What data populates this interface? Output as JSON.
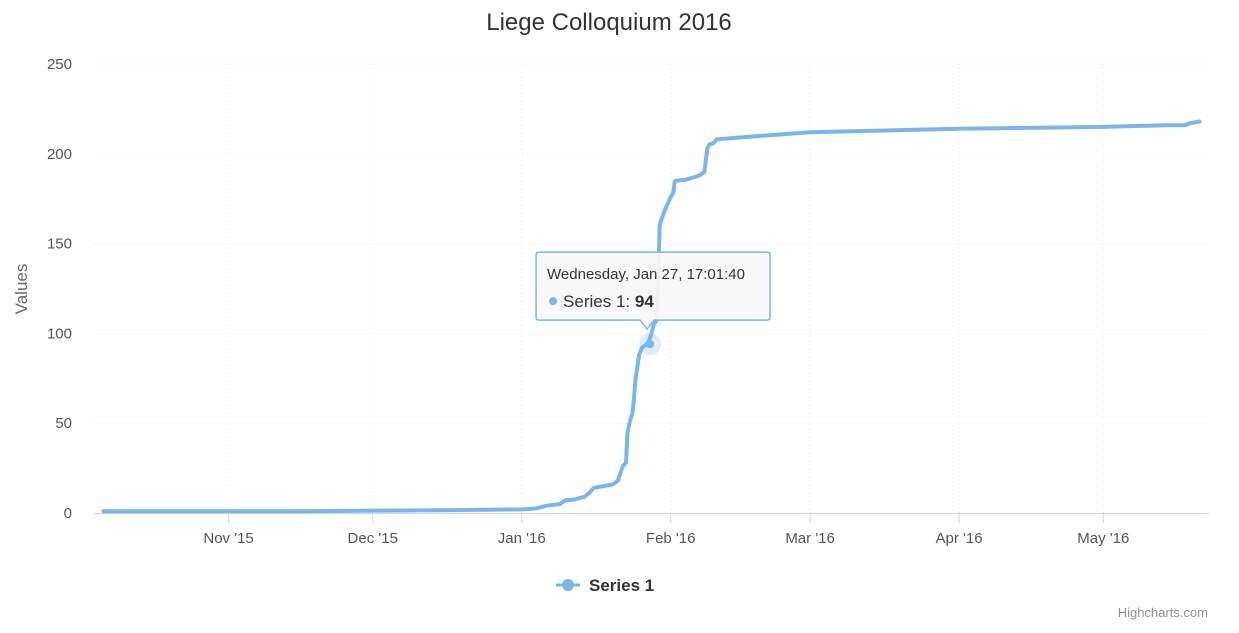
{
  "chart_data": {
    "type": "line",
    "title": "Liege Colloquium 2016",
    "ylabel": "Values",
    "xlabel": "",
    "ylim": [
      0,
      250
    ],
    "xlim": [
      "2015-10-04",
      "2016-05-23"
    ],
    "y_ticks": [
      0,
      50,
      100,
      150,
      200,
      250
    ],
    "x_ticks": [
      {
        "date": "2015-11-01",
        "label": "Nov '15"
      },
      {
        "date": "2015-12-01",
        "label": "Dec '15"
      },
      {
        "date": "2016-01-01",
        "label": "Jan '16"
      },
      {
        "date": "2016-02-01",
        "label": "Feb '16"
      },
      {
        "date": "2016-03-01",
        "label": "Mar '16"
      },
      {
        "date": "2016-04-01",
        "label": "Apr '16"
      },
      {
        "date": "2016-05-01",
        "label": "May '16"
      }
    ],
    "grid": true,
    "legend_position": "bottom-center",
    "series": [
      {
        "name": "Series 1",
        "color": "#7cb5ec",
        "points": [
          [
            "2015-10-06",
            1
          ],
          [
            "2015-11-15",
            1
          ],
          [
            "2015-12-15",
            1.5
          ],
          [
            "2016-01-01",
            2
          ],
          [
            "2016-01-04",
            2.5
          ],
          [
            "2016-01-06",
            4
          ],
          [
            "2016-01-09",
            5
          ],
          [
            "2016-01-10",
            7
          ],
          [
            "2016-01-12",
            7.5
          ],
          [
            "2016-01-14",
            9
          ],
          [
            "2016-01-15",
            11
          ],
          [
            "2016-01-16",
            14
          ],
          [
            "2016-01-18",
            15
          ],
          [
            "2016-01-20",
            16
          ],
          [
            "2016-01-21",
            18
          ],
          [
            "2016-01-21.5",
            22
          ],
          [
            "2016-01-22",
            26
          ],
          [
            "2016-01-22.7",
            28
          ],
          [
            "2016-01-23",
            45
          ],
          [
            "2016-01-23.6",
            52
          ],
          [
            "2016-01-24",
            55
          ],
          [
            "2016-01-24.3",
            62
          ],
          [
            "2016-01-24.7",
            75
          ],
          [
            "2016-01-25",
            80
          ],
          [
            "2016-01-25.4",
            88
          ],
          [
            "2016-01-26",
            92
          ],
          [
            "2016-01-27",
            94
          ],
          [
            "2016-01-27.5",
            96
          ],
          [
            "2016-01-28",
            100
          ],
          [
            "2016-01-28.5",
            105
          ],
          [
            "2016-01-29",
            107
          ],
          [
            "2016-01-29.4",
            130
          ],
          [
            "2016-01-29.7",
            160
          ],
          [
            "2016-01-30",
            163
          ],
          [
            "2016-01-31",
            170
          ],
          [
            "2016-02-01",
            176
          ],
          [
            "2016-02-01.5",
            178
          ],
          [
            "2016-02-01.8",
            184
          ],
          [
            "2016-02-02",
            185
          ],
          [
            "2016-02-04",
            185.5
          ],
          [
            "2016-02-06",
            187
          ],
          [
            "2016-02-07",
            188
          ],
          [
            "2016-02-08",
            190
          ],
          [
            "2016-02-08.6",
            203
          ],
          [
            "2016-02-09",
            205
          ],
          [
            "2016-02-10",
            206
          ],
          [
            "2016-02-10.5",
            208
          ],
          [
            "2016-02-15",
            209
          ],
          [
            "2016-02-20",
            210
          ],
          [
            "2016-03-01",
            212
          ],
          [
            "2016-04-01",
            214
          ],
          [
            "2016-05-01",
            215
          ],
          [
            "2016-05-15",
            216
          ],
          [
            "2016-05-18",
            216
          ],
          [
            "2016-05-19",
            217
          ],
          [
            "2016-05-21",
            218
          ]
        ]
      }
    ],
    "tooltip": {
      "header": "Wednesday, Jan 27, 17:01:40",
      "series_name": "Series 1",
      "value_text": "94",
      "date": "2016-01-27.7",
      "y": 94
    },
    "credits": "Highcharts.com"
  }
}
